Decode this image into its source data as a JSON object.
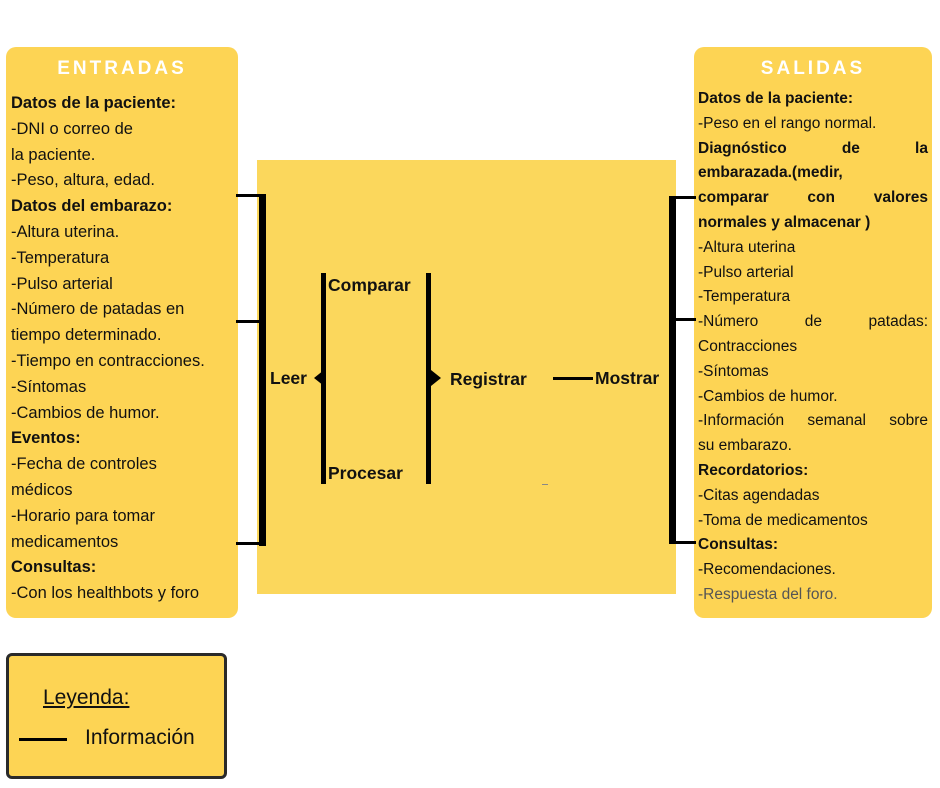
{
  "colors": {
    "panel": "#fdd454",
    "center": "#fbd75c",
    "title_text": "#ffffff",
    "line": "#000000",
    "muted_text": "#555555"
  },
  "inputs": {
    "title": "ENTRADAS",
    "lines": [
      {
        "text": "Datos de la paciente:",
        "bold": true
      },
      {
        "text": "-DNI o correo de",
        "bold": false
      },
      {
        "text": "la paciente.",
        "bold": false
      },
      {
        "text": "-Peso, altura, edad.",
        "bold": false
      },
      {
        "text": "Datos del embarazo:",
        "bold": true
      },
      {
        "text": "-Altura uterina.",
        "bold": false
      },
      {
        "text": "-Temperatura",
        "bold": false
      },
      {
        "text": "-Pulso arterial",
        "bold": false
      },
      {
        "text": "-Número de patadas en",
        "bold": false
      },
      {
        "text": "tiempo determinado.",
        "bold": false
      },
      {
        "text": "-Tiempo en  contracciones.",
        "bold": false
      },
      {
        "text": "-Síntomas",
        "bold": false
      },
      {
        "text": "-Cambios de humor.",
        "bold": false
      },
      {
        "text": "Eventos:",
        "bold": true
      },
      {
        "text": "-Fecha de controles",
        "bold": false
      },
      {
        "text": "médicos",
        "bold": false
      },
      {
        "text": "-Horario para tomar",
        "bold": false
      },
      {
        "text": "medicamentos",
        "bold": false
      },
      {
        "text": "Consultas:",
        "bold": true
      },
      {
        "text": "-Con los healthbots y foro",
        "bold": false
      }
    ]
  },
  "process": {
    "read": "Leer",
    "compare": "Comparar",
    "process": "Procesar",
    "register": "Registrar",
    "show": "Mostrar"
  },
  "outputs": {
    "title": "SALIDAS",
    "lines": [
      {
        "text": "Datos de la paciente:",
        "bold": true,
        "justify": false,
        "muted": false
      },
      {
        "text": "-Peso en el rango normal.",
        "bold": false,
        "justify": false,
        "muted": false
      },
      {
        "text": "Diagnóstico de la",
        "bold": true,
        "justify": true,
        "muted": false
      },
      {
        "text": "embarazada.(medir,",
        "bold": true,
        "justify": false,
        "muted": false
      },
      {
        "text": "comparar con valores",
        "bold": true,
        "justify": true,
        "muted": false
      },
      {
        "text": "normales y almacenar )",
        "bold": true,
        "justify": false,
        "muted": false
      },
      {
        "text": "-Altura uterina",
        "bold": false,
        "justify": false,
        "muted": false
      },
      {
        "text": "-Pulso arterial",
        "bold": false,
        "justify": false,
        "muted": false
      },
      {
        "text": "-Temperatura",
        "bold": false,
        "justify": false,
        "muted": false
      },
      {
        "text": "-Número de patadas:",
        "bold": false,
        "justify": true,
        "muted": false
      },
      {
        "text": "Contracciones",
        "bold": false,
        "justify": false,
        "muted": false
      },
      {
        "text": "-Síntomas",
        "bold": false,
        "justify": false,
        "muted": false
      },
      {
        "text": "-Cambios de humor.",
        "bold": false,
        "justify": false,
        "muted": false
      },
      {
        "text": "-Información semanal sobre",
        "bold": false,
        "justify": true,
        "muted": false
      },
      {
        "text": "su embarazo.",
        "bold": false,
        "justify": false,
        "muted": false
      },
      {
        "text": "Recordatorios:",
        "bold": true,
        "justify": false,
        "muted": false
      },
      {
        "text": "-Citas agendadas",
        "bold": false,
        "justify": false,
        "muted": false
      },
      {
        "text": "-Toma de medicamentos",
        "bold": false,
        "justify": false,
        "muted": false
      },
      {
        "text": "Consultas:",
        "bold": true,
        "justify": false,
        "muted": false
      },
      {
        "text": "-Recomendaciones.",
        "bold": false,
        "justify": false,
        "muted": false
      },
      {
        "text": "-Respuesta del foro.",
        "bold": false,
        "justify": false,
        "muted": true
      }
    ]
  },
  "legend": {
    "title": "Leyenda:",
    "item": "Información"
  }
}
